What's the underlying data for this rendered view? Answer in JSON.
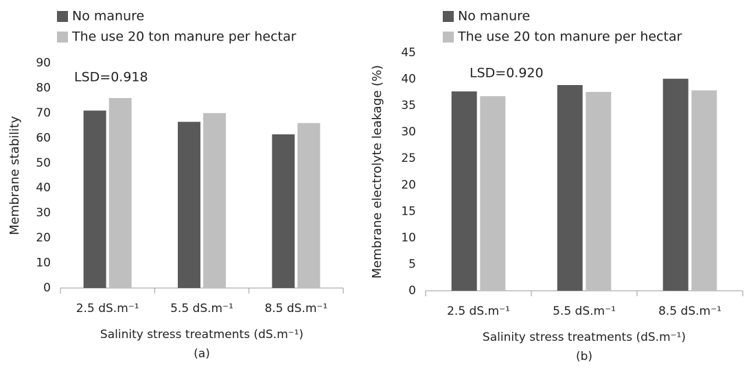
{
  "chart_data": [
    {
      "type": "bar",
      "categories": [
        "2.5 dS.m⁻¹",
        "5.5 dS.m⁻¹",
        "8.5 dS.m⁻¹"
      ],
      "series": [
        {
          "name": "No manure",
          "color": "#595959",
          "values": [
            71,
            66.5,
            61.5
          ]
        },
        {
          "name": "The use 20 ton manure per hectar",
          "color": "#bfbfbf",
          "values": [
            76,
            70,
            66
          ]
        }
      ],
      "ylim": [
        0,
        90
      ],
      "yticks": [
        0,
        10,
        20,
        30,
        40,
        50,
        60,
        70,
        80,
        90
      ],
      "y_label": "Membrane stability",
      "x_label": "Salinity stress treatments (dS.m⁻¹)",
      "annotation": "LSD=0.918",
      "caption": "(a)",
      "legend": "top-left"
    },
    {
      "type": "bar",
      "categories": [
        "2.5 dS.m⁻¹",
        "5.5 dS.m⁻¹",
        "8.5 dS.m⁻¹"
      ],
      "series": [
        {
          "name": "No manure",
          "color": "#595959",
          "values": [
            37.7,
            38.9,
            40.1
          ]
        },
        {
          "name": "The use 20 ton manure per hectar",
          "color": "#bfbfbf",
          "values": [
            36.8,
            37.6,
            37.9
          ]
        }
      ],
      "ylim": [
        0,
        45
      ],
      "yticks": [
        0,
        5,
        10,
        15,
        20,
        25,
        30,
        35,
        40,
        45
      ],
      "y_label": "Membrane electrolyte leakage (%)",
      "x_label": "Salinity stress treatments (dS.m⁻¹)",
      "annotation": "LSD=0.920",
      "caption": "(b)",
      "legend": "top-left"
    }
  ]
}
